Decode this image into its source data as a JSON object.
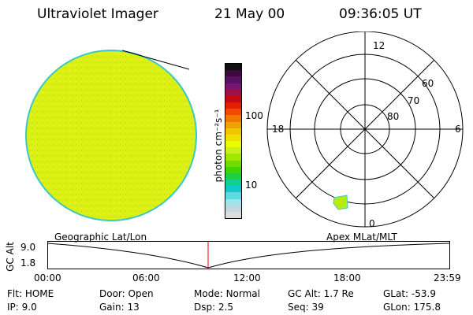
{
  "header": {
    "title": "Ultraviolet Imager",
    "date": "21 May 00",
    "time": "09:36:05 UT"
  },
  "colorbar": {
    "units_label": "photon cm⁻²s⁻¹",
    "tick_100": "100",
    "tick_10": "10",
    "colors": [
      "#101010",
      "#3c0a3c",
      "#5a1064",
      "#7a1470",
      "#a01040",
      "#c80a10",
      "#e02000",
      "#f04a00",
      "#f07800",
      "#f0a000",
      "#f0c800",
      "#f0e000",
      "#e8ff00",
      "#c8f020",
      "#a0e800",
      "#70dc00",
      "#40d400",
      "#20d040",
      "#10d090",
      "#10c8c8",
      "#60d8e0",
      "#a0e4ea",
      "#c0d8dc",
      "#dcdcdc"
    ]
  },
  "polar": {
    "mlt_labels": {
      "top": "12",
      "left": "18",
      "right": "6",
      "bottom": "0"
    },
    "lat_labels": [
      "60",
      "70",
      "80"
    ]
  },
  "timeline": {
    "title_left": "Geographic Lat/Lon",
    "title_right": "Apex MLat/MLT",
    "ylabel": "GC Alt",
    "y_top": "9.0",
    "y_bottom": "1.8",
    "x_ticks": [
      "00:00",
      "06:00",
      "12:00",
      "18:00",
      "23:59"
    ],
    "current_time_marker_color": "#e00000"
  },
  "info": {
    "row1": [
      {
        "key": "Flt:",
        "value": "HOME"
      },
      {
        "key": "Door:",
        "value": "Open"
      },
      {
        "key": "Mode:",
        "value": "Normal"
      },
      {
        "key": "GC Alt:",
        "value": "1.7 Re"
      },
      {
        "key": "GLat:",
        "value": "-53.9"
      }
    ],
    "row2": [
      {
        "key": "IP:",
        "value": "9.0"
      },
      {
        "key": "Gain:",
        "value": "13"
      },
      {
        "key": "Dsp:",
        "value": "2.5"
      },
      {
        "key": "Seq:",
        "value": "39"
      },
      {
        "key": "GLon:",
        "value": "175.8"
      }
    ]
  },
  "image_colors": {
    "disk_fill": "#dcf016",
    "disk_edge": "#3cc8c8",
    "patch": "#b8ec10"
  }
}
